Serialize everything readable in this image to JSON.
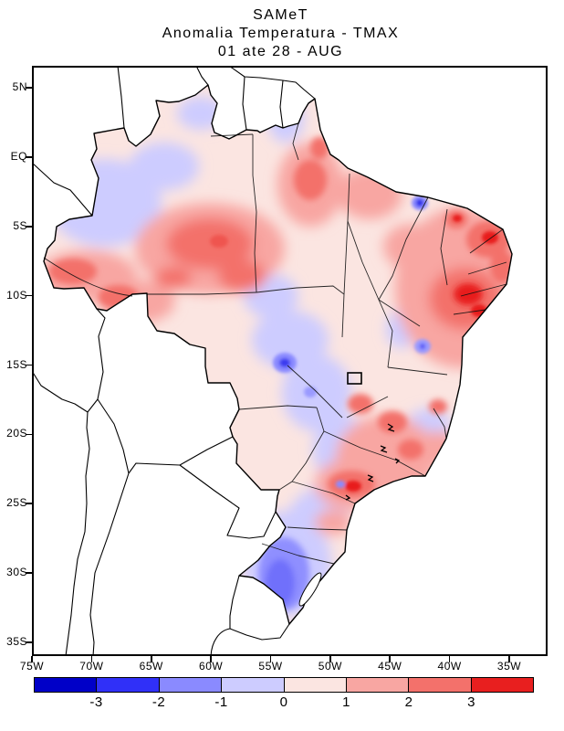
{
  "title": {
    "line1": "SAMeT",
    "line2": "Anomalia Temperatura - TMAX",
    "line3": "01 ate 28 - AUG"
  },
  "axes": {
    "lat_ticks": [
      "5N",
      "EQ",
      "5S",
      "10S",
      "15S",
      "20S",
      "25S",
      "30S",
      "35S"
    ],
    "lon_ticks": [
      "75W",
      "70W",
      "65W",
      "60W",
      "55W",
      "50W",
      "45W",
      "40W",
      "35W"
    ]
  },
  "colorbar": {
    "tick_labels": [
      "-3",
      "-2",
      "-1",
      "0",
      "1",
      "2",
      "3"
    ],
    "segment_colors": [
      "#0000c8",
      "#3030f8",
      "#8a8aff",
      "#cdccff",
      "#fbe5e1",
      "#f8a6a2",
      "#f3716b",
      "#e81f1f"
    ]
  },
  "chart_data": {
    "type": "heatmap",
    "variable": "Anomalia Temperatura - TMAX",
    "period": "01 ate 28 - AUG",
    "source_label": "SAMeT",
    "contour_levels": [
      -3,
      -2,
      -1,
      0,
      1,
      2,
      3
    ],
    "palette": [
      "#0000c8",
      "#3030f8",
      "#8a8aff",
      "#cdccff",
      "#fbe5e1",
      "#f8a6a2",
      "#f3716b",
      "#e81f1f"
    ],
    "map_domain": {
      "lon_range": [
        "75W",
        "35W"
      ],
      "lat_range": [
        "5N",
        "35S"
      ]
    },
    "notable_features": [
      "Positive anomalies (+1 to +3) over central Amazonia, Acre/Rondonia, eastern Para, interior Northeast Brazil, Minas Gerais and the Sao Paulo/Parana border",
      "Strongest warm cores (+2 to +3) in interior Northeast Brazil",
      "Negative anomalies (-1 to -2) over northwestern Amazonas, a central Brazil band, and Rio Grande do Sul",
      "Shading only inside Brazil; neighboring countries unshaded"
    ]
  }
}
